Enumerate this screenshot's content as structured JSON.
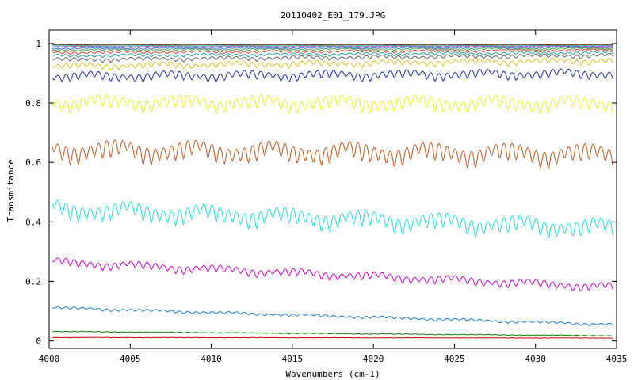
{
  "chart_data": {
    "type": "line",
    "title": "20110402_E01_179.JPG",
    "xlabel": "Wavenumbers (cm-1)",
    "ylabel": "Transmitance",
    "xlim": [
      4000,
      4035
    ],
    "ylim": [
      -0.025,
      1.045
    ],
    "xticks": [
      4000,
      4005,
      4010,
      4015,
      4020,
      4025,
      4030,
      4035
    ],
    "xtick_labels": [
      "4000",
      "4005",
      "4010",
      "4015",
      "4020",
      "4025",
      "4030",
      "4035"
    ],
    "yticks": [
      0,
      0.2,
      0.4,
      0.6,
      0.8,
      1
    ],
    "ytick_labels": [
      "0",
      "0.2",
      "0.4",
      "0.6",
      "0.8",
      "1"
    ],
    "grid": false,
    "legend": "none",
    "series": [
      {
        "color": "#c00000",
        "base": [
          0.012,
          0.01
        ],
        "amp": 0.001
      },
      {
        "color": "#008000",
        "base": [
          0.033,
          0.018
        ],
        "amp": 0.002
      },
      {
        "color": "#1a7ec8",
        "base": [
          0.115,
          0.058
        ],
        "amp": 0.008
      },
      {
        "color": "#cc00cc",
        "base": [
          0.275,
          0.19
        ],
        "amp": 0.025
      },
      {
        "color": "#22e0e0",
        "base": [
          0.465,
          0.4
        ],
        "amp": 0.055
      },
      {
        "color": "#b85a20",
        "base": [
          0.665,
          0.65
        ],
        "amp": 0.06
      },
      {
        "color": "#f0f020",
        "base": [
          0.82,
          0.815
        ],
        "amp": 0.045
      },
      {
        "color": "#1c2ca0",
        "base": [
          0.9,
          0.91
        ],
        "amp": 0.028
      },
      {
        "color": "#e0c020",
        "base": [
          0.93,
          0.95
        ],
        "amp": 0.018
      },
      {
        "color": "#606060",
        "base": [
          0.95,
          0.965
        ],
        "amp": 0.012
      },
      {
        "color": "#20a0a0",
        "base": [
          0.962,
          0.973
        ],
        "amp": 0.009
      },
      {
        "color": "#e04040",
        "base": [
          0.972,
          0.98
        ],
        "amp": 0.007
      },
      {
        "color": "#40a040",
        "base": [
          0.98,
          0.985
        ],
        "amp": 0.006
      },
      {
        "color": "#4060e0",
        "base": [
          0.985,
          0.989
        ],
        "amp": 0.005
      },
      {
        "color": "#c040c0",
        "base": [
          0.99,
          0.992
        ],
        "amp": 0.004
      },
      {
        "color": "#20c0c0",
        "base": [
          0.993,
          0.994
        ],
        "amp": 0.003
      },
      {
        "color": "#a06030",
        "base": [
          0.996,
          0.996
        ],
        "amp": 0.002
      },
      {
        "color": "#000000",
        "base": [
          0.998,
          0.998
        ],
        "amp": 0.001
      }
    ]
  }
}
